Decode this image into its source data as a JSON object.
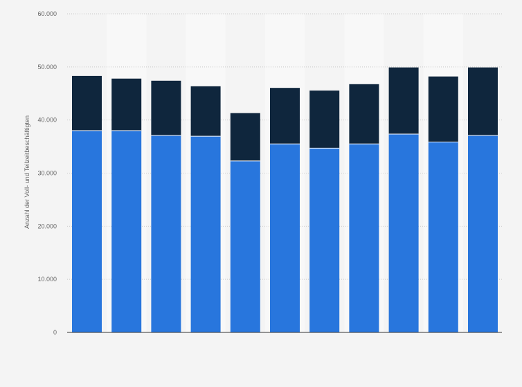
{
  "chart_data": {
    "type": "bar",
    "stacked": true,
    "categories": [
      "",
      "",
      "",
      "",
      "",
      "",
      "",
      "",
      "",
      "",
      ""
    ],
    "series": [
      {
        "values": [
          38000,
          38000,
          37100,
          36950,
          32300,
          35500,
          34700,
          35500,
          37350,
          35850,
          37100
        ],
        "color": "#2876dd"
      },
      {
        "values": [
          10300,
          9800,
          10300,
          9400,
          9000,
          10550,
          10850,
          11250,
          12550,
          12350,
          12800
        ],
        "color": "#0f263d"
      }
    ],
    "ylabel": "Anzahl der Voll- und Teilzeitbeschäftigten",
    "ylim": [
      0,
      60000
    ],
    "yticks": [
      0,
      10000,
      20000,
      30000,
      40000,
      50000,
      60000
    ],
    "ytick_labels": [
      "0",
      "10.000",
      "20.000",
      "30.000",
      "40.000",
      "50.000",
      "60.000"
    ],
    "grid": true,
    "grid_style": "dotted",
    "legend": false
  }
}
